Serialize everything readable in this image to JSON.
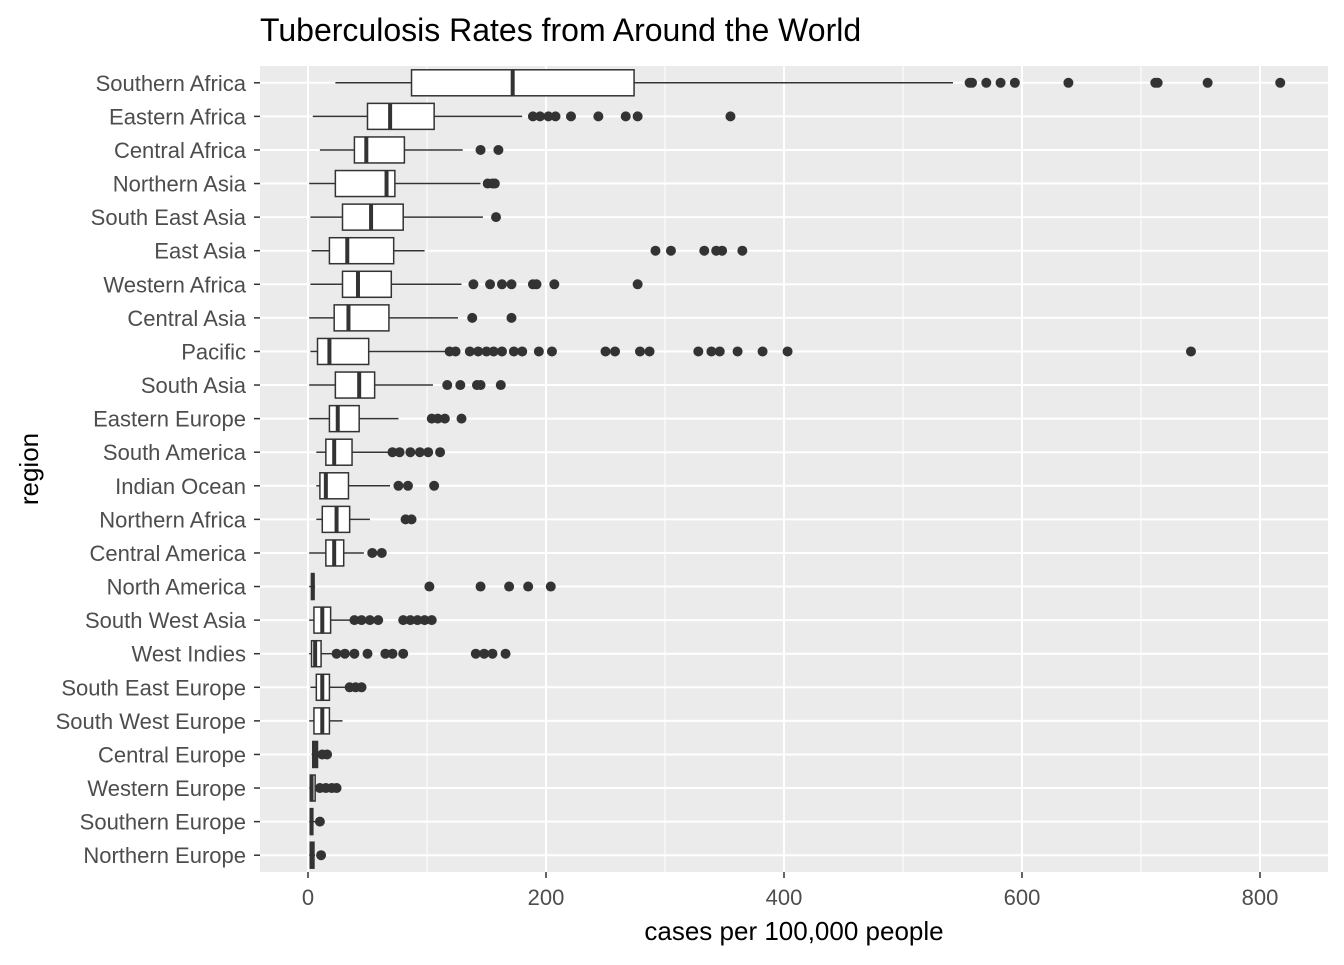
{
  "chart_data": {
    "type": "boxplot",
    "orientation": "horizontal",
    "title": "Tuberculosis Rates from Around the World",
    "xlabel": "cases per 100,000 people",
    "ylabel": "region",
    "xlim": [
      -40,
      850
    ],
    "x_ticks": [
      0,
      200,
      400,
      600,
      800
    ],
    "x_tick_labels": [
      "0",
      "200",
      "400",
      "600",
      "800"
    ],
    "grid": true,
    "legend": "none",
    "colors": {
      "panel": "#EBEBEB",
      "grid": "#FFFFFF",
      "box_fill": "#FFFFFF",
      "stroke": "#333333",
      "text": "#4D4D4D"
    },
    "series": [
      {
        "region": "Southern Africa",
        "whisker_low": 23,
        "q1": 87,
        "median": 172,
        "q3": 274,
        "whisker_high": 542,
        "outliers": [
          556,
          558,
          570,
          582,
          594,
          639,
          712,
          714,
          756,
          817
        ]
      },
      {
        "region": "Eastern Africa",
        "whisker_low": 4,
        "q1": 50,
        "median": 69,
        "q3": 106,
        "whisker_high": 180,
        "outliers": [
          189,
          195,
          202,
          208,
          221,
          244,
          267,
          277,
          355
        ]
      },
      {
        "region": "Central Africa",
        "whisker_low": 10,
        "q1": 39,
        "median": 49,
        "q3": 81,
        "whisker_high": 130,
        "outliers": [
          145,
          160
        ]
      },
      {
        "region": "Northern Asia",
        "whisker_low": 1,
        "q1": 23,
        "median": 66,
        "q3": 73,
        "whisker_high": 145,
        "outliers": [
          151,
          155,
          157
        ]
      },
      {
        "region": "South East Asia",
        "whisker_low": 2,
        "q1": 29,
        "median": 53,
        "q3": 80,
        "whisker_high": 147,
        "outliers": [
          158
        ]
      },
      {
        "region": "East Asia",
        "whisker_low": 3,
        "q1": 18,
        "median": 33,
        "q3": 72,
        "whisker_high": 98,
        "outliers": [
          292,
          305,
          333,
          343,
          348,
          365
        ]
      },
      {
        "region": "Western Africa",
        "whisker_low": 2,
        "q1": 29,
        "median": 42,
        "q3": 70,
        "whisker_high": 129,
        "outliers": [
          139,
          153,
          163,
          171,
          189,
          192,
          207,
          277
        ]
      },
      {
        "region": "Central Asia",
        "whisker_low": 1,
        "q1": 22,
        "median": 34,
        "q3": 68,
        "whisker_high": 126,
        "outliers": [
          138,
          171
        ]
      },
      {
        "region": "Pacific",
        "whisker_low": 2,
        "q1": 8,
        "median": 18,
        "q3": 51,
        "whisker_high": 117,
        "outliers": [
          119,
          124,
          136,
          143,
          150,
          156,
          163,
          173,
          180,
          194,
          205,
          250,
          258,
          279,
          287,
          328,
          339,
          346,
          361,
          382,
          403,
          742
        ]
      },
      {
        "region": "South Asia",
        "whisker_low": 1,
        "q1": 23,
        "median": 43,
        "q3": 56,
        "whisker_high": 105,
        "outliers": [
          117,
          128,
          142,
          145,
          162
        ]
      },
      {
        "region": "Eastern Europe",
        "whisker_low": 1,
        "q1": 18,
        "median": 25,
        "q3": 43,
        "whisker_high": 76,
        "outliers": [
          104,
          109,
          115,
          129
        ]
      },
      {
        "region": "South America",
        "whisker_low": 7,
        "q1": 15,
        "median": 22,
        "q3": 37,
        "whisker_high": 68,
        "outliers": [
          71,
          77,
          86,
          94,
          101,
          111
        ]
      },
      {
        "region": "Indian Ocean",
        "whisker_low": 7,
        "q1": 10,
        "median": 15,
        "q3": 34,
        "whisker_high": 69,
        "outliers": [
          76,
          84,
          106
        ]
      },
      {
        "region": "Northern Africa",
        "whisker_low": 7,
        "q1": 12,
        "median": 24,
        "q3": 35,
        "whisker_high": 52,
        "outliers": [
          82,
          87
        ]
      },
      {
        "region": "Central America",
        "whisker_low": 1,
        "q1": 15,
        "median": 22,
        "q3": 30,
        "whisker_high": 47,
        "outliers": [
          54,
          62
        ]
      },
      {
        "region": "North America",
        "whisker_low": 1,
        "q1": 3,
        "median": 4,
        "q3": 5,
        "whisker_high": 6,
        "outliers": [
          102,
          145,
          169,
          185,
          204
        ]
      },
      {
        "region": "South West Asia",
        "whisker_low": 1,
        "q1": 5,
        "median": 12,
        "q3": 19,
        "whisker_high": 36,
        "outliers": [
          39,
          45,
          52,
          59,
          80,
          86,
          92,
          98,
          104
        ]
      },
      {
        "region": "West Indies",
        "whisker_low": 1,
        "q1": 3,
        "median": 6,
        "q3": 11,
        "whisker_high": 21,
        "outliers": [
          24,
          31,
          39,
          50,
          65,
          71,
          80,
          141,
          148,
          155,
          166
        ]
      },
      {
        "region": "South East Europe",
        "whisker_low": 2,
        "q1": 7,
        "median": 12,
        "q3": 18,
        "whisker_high": 31,
        "outliers": [
          35,
          40,
          45
        ]
      },
      {
        "region": "South West Europe",
        "whisker_low": 1,
        "q1": 5,
        "median": 12,
        "q3": 18,
        "whisker_high": 29,
        "outliers": []
      },
      {
        "region": "Central Europe",
        "whisker_low": 3,
        "q1": 4,
        "median": 6,
        "q3": 8,
        "whisker_high": 9,
        "outliers": [
          12,
          16
        ]
      },
      {
        "region": "Western Europe",
        "whisker_low": 1,
        "q1": 2,
        "median": 3,
        "q3": 6,
        "whisker_high": 8,
        "outliers": [
          10,
          15,
          20,
          24
        ]
      },
      {
        "region": "Southern Europe",
        "whisker_low": 1,
        "q1": 2,
        "median": 3,
        "q3": 4,
        "whisker_high": 6,
        "outliers": [
          10
        ]
      },
      {
        "region": "Northern Europe",
        "whisker_low": 1,
        "q1": 2,
        "median": 3,
        "q3": 5,
        "whisker_high": 6,
        "outliers": [
          11
        ]
      }
    ]
  }
}
